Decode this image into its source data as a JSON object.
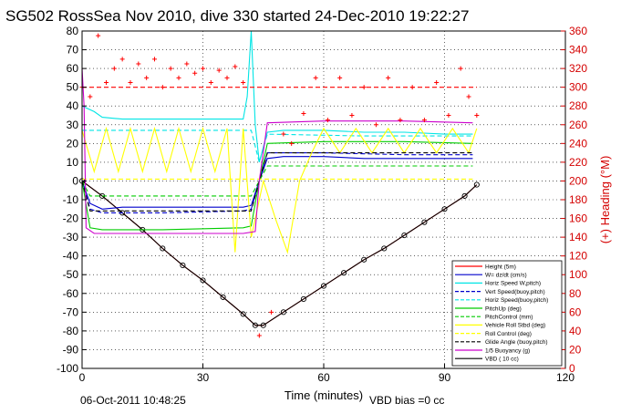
{
  "chart_data": {
    "type": "line",
    "title": "SG502 RossSea Nov 2010, dive 330 started 24-Dec-2010 19:22:27",
    "xlabel": "Time (minutes)",
    "ylabel_right": "(+) Heading (°M)",
    "xlim": [
      0,
      120
    ],
    "ylim": [
      -100,
      80
    ],
    "ylim_right": [
      0,
      360
    ],
    "x_ticks": [
      0,
      30,
      60,
      90,
      120
    ],
    "y_ticks": [
      -100,
      -90,
      -80,
      -70,
      -60,
      -50,
      -40,
      -30,
      -20,
      -10,
      0,
      10,
      20,
      30,
      40,
      50,
      60,
      70,
      80
    ],
    "y_ticks_right": [
      0,
      20,
      40,
      60,
      80,
      100,
      120,
      140,
      160,
      180,
      200,
      220,
      240,
      260,
      280,
      300,
      320,
      340,
      360
    ],
    "grid": true,
    "legend_position": "bottom-right",
    "footer_date": "06-Oct-2011 10:48:25",
    "footer_note": "VBD bias =0 cc",
    "legend": [
      {
        "label": "Height (5m)",
        "color": "#ff0000",
        "style": "solid"
      },
      {
        "label": "W= dz/dt (cm/s)",
        "color": "#0000cc",
        "style": "solid"
      },
      {
        "label": "Horiz Speed W,pitch)",
        "color": "#00e5e5",
        "style": "solid"
      },
      {
        "label": "Vert Speed(buoy,pitch)",
        "color": "#0000cc",
        "style": "dashed"
      },
      {
        "label": "Horiz Speed(buoy,pitch)",
        "color": "#00e5e5",
        "style": "dashed"
      },
      {
        "label": "PitchUp (deg)",
        "color": "#00cc00",
        "style": "solid"
      },
      {
        "label": "PitchControl (mm)",
        "color": "#00cc00",
        "style": "dashed"
      },
      {
        "label": "Vehicle Roll Stbd (deg)",
        "color": "#ffff00",
        "style": "solid"
      },
      {
        "label": "Roll Control (deg)",
        "color": "#ffff00",
        "style": "dashed"
      },
      {
        "label": "Glide Angle (buoy,pitch)",
        "color": "#000000",
        "style": "dashed"
      },
      {
        "label": "1/5 Buoyancy (g)",
        "color": "#cc00cc",
        "style": "solid"
      },
      {
        "label": "VBD ( 10 cc)",
        "color": "#000000",
        "style": "solid"
      }
    ],
    "series": [
      {
        "name": "Height (5m)",
        "color": "#ff0000",
        "style": "solid",
        "x": [
          0,
          5,
          10,
          15,
          20,
          25,
          30,
          35,
          40,
          43,
          45,
          50,
          55,
          60,
          65,
          70,
          75,
          80,
          85,
          90,
          95,
          98
        ],
        "y": [
          0,
          -8,
          -17,
          -26,
          -36,
          -45,
          -53,
          -62,
          -71,
          -77,
          -77,
          -70,
          -63,
          -56,
          -49,
          -42,
          -36,
          -29,
          -22,
          -15,
          -8,
          -2
        ]
      },
      {
        "name": "VBD ( 10 cc)",
        "color": "#000000",
        "style": "solid",
        "x": [
          0,
          5,
          10,
          15,
          20,
          25,
          30,
          35,
          40,
          43,
          45,
          50,
          55,
          60,
          65,
          70,
          75,
          80,
          85,
          90,
          95,
          98
        ],
        "y": [
          0,
          -8,
          -17,
          -26,
          -36,
          -45,
          -53,
          -62,
          -71,
          -77,
          -77,
          -70,
          -63,
          -56,
          -49,
          -42,
          -36,
          -29,
          -22,
          -15,
          -8,
          -2
        ]
      },
      {
        "name": "W= dz/dt (cm/s)",
        "color": "#0000cc",
        "style": "solid",
        "x": [
          0,
          2,
          5,
          10,
          20,
          30,
          40,
          42,
          44,
          46,
          50,
          60,
          70,
          80,
          90,
          97
        ],
        "y": [
          0,
          -12,
          -15,
          -14,
          -14,
          -14,
          -14,
          -13,
          0,
          12,
          13,
          13,
          12,
          12,
          12,
          12
        ]
      },
      {
        "name": "Vert Speed(buoy,pitch)",
        "color": "#0000cc",
        "style": "dashed",
        "x": [
          0,
          2,
          5,
          20,
          40,
          42,
          44,
          46,
          60,
          80,
          97
        ],
        "y": [
          0,
          -15,
          -17,
          -17,
          -16,
          -15,
          0,
          15,
          15,
          14,
          14
        ]
      },
      {
        "name": "Horiz Speed W,pitch)",
        "color": "#00e5e5",
        "style": "solid",
        "x": [
          0,
          3,
          5,
          10,
          20,
          30,
          40,
          41,
          42,
          43,
          44,
          46,
          50,
          60,
          70,
          80,
          90,
          97
        ],
        "y": [
          40,
          37,
          34,
          33,
          33,
          33,
          33,
          45,
          80,
          30,
          10,
          26,
          27,
          27,
          26,
          26,
          25,
          25
        ]
      },
      {
        "name": "Horiz Speed(buoy,pitch)",
        "color": "#00e5e5",
        "style": "dashed",
        "x": [
          0,
          3,
          20,
          42,
          44,
          46,
          70,
          97
        ],
        "y": [
          27,
          27,
          27,
          27,
          10,
          25,
          24,
          24
        ]
      },
      {
        "name": "PitchUp (deg)",
        "color": "#00cc00",
        "style": "solid",
        "x": [
          0,
          2,
          5,
          20,
          40,
          42,
          44,
          46,
          60,
          80,
          97
        ],
        "y": [
          0,
          -25,
          -26,
          -26,
          -25,
          -24,
          0,
          20,
          21,
          21,
          20
        ]
      },
      {
        "name": "PitchControl (mm)",
        "color": "#00cc00",
        "style": "dashed",
        "x": [
          0,
          2,
          20,
          42,
          44,
          46,
          70,
          97
        ],
        "y": [
          0,
          -8,
          -8,
          -8,
          0,
          8,
          8,
          8
        ]
      },
      {
        "name": "Vehicle Roll Stbd (deg)",
        "color": "#ffff00",
        "style": "solid",
        "x": [
          0,
          3,
          6,
          9,
          12,
          15,
          18,
          21,
          24,
          27,
          30,
          33,
          36,
          38,
          40,
          42,
          45,
          48,
          51,
          54,
          57,
          60,
          64,
          68,
          72,
          76,
          80,
          84,
          88,
          92,
          96,
          98
        ],
        "y": [
          27,
          5,
          28,
          5,
          28,
          5,
          28,
          5,
          28,
          5,
          28,
          5,
          28,
          -38,
          28,
          -30,
          0,
          -20,
          -38,
          0,
          15,
          28,
          15,
          28,
          15,
          28,
          15,
          28,
          15,
          28,
          15,
          28
        ]
      },
      {
        "name": "Roll Control (deg)",
        "color": "#ffff00",
        "style": "dashed",
        "x": [
          0,
          30,
          43,
          97
        ],
        "y": [
          1,
          1,
          1,
          1
        ]
      },
      {
        "name": "Glide Angle (buoy,pitch)",
        "color": "#000000",
        "style": "dashed",
        "x": [
          0,
          2,
          20,
          42,
          44,
          46,
          70,
          97
        ],
        "y": [
          0,
          -16,
          -16,
          -16,
          0,
          15,
          15,
          15
        ]
      },
      {
        "name": "1/5 Buoyancy (g)",
        "color": "#cc00cc",
        "style": "solid",
        "x": [
          0,
          0.5,
          1,
          3,
          10,
          20,
          30,
          40,
          43,
          44,
          46,
          60,
          80,
          97
        ],
        "y": [
          60,
          40,
          -25,
          -28,
          -28,
          -28,
          -28,
          -28,
          -27,
          0,
          31,
          32,
          32,
          31
        ]
      },
      {
        "name": "Heading (°M)",
        "axis": "right",
        "color": "#ff0000",
        "style": "points",
        "x": [
          0,
          2,
          4,
          6,
          8,
          10,
          12,
          14,
          16,
          18,
          20,
          22,
          24,
          26,
          28,
          30,
          32,
          34,
          36,
          38,
          40,
          44,
          47,
          50,
          52,
          55,
          58,
          61,
          64,
          67,
          70,
          73,
          76,
          79,
          82,
          85,
          88,
          91,
          94,
          96,
          98
        ],
        "y": [
          300,
          290,
          355,
          305,
          320,
          330,
          305,
          325,
          310,
          330,
          300,
          320,
          310,
          325,
          315,
          320,
          305,
          318,
          310,
          322,
          305,
          35,
          60,
          250,
          240,
          272,
          310,
          265,
          310,
          270,
          300,
          260,
          310,
          265,
          300,
          265,
          305,
          270,
          320,
          290,
          270
        ]
      },
      {
        "name": "Heading reference",
        "axis": "right",
        "color": "#ff0000",
        "style": "dashed",
        "x": [
          0,
          98
        ],
        "y": [
          300,
          300
        ]
      }
    ]
  }
}
